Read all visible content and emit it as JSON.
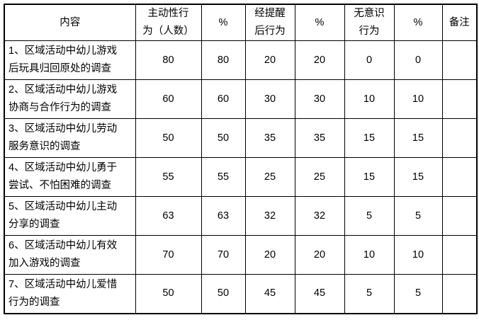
{
  "colors": {
    "border": "#000000",
    "text": "#000000",
    "background": "#ffffff"
  },
  "table": {
    "headers": [
      {
        "lines": [
          "内容"
        ]
      },
      {
        "lines": [
          "主动性行",
          "为（人数）"
        ]
      },
      {
        "lines": [
          "%"
        ]
      },
      {
        "lines": [
          "经提醒",
          "后行为"
        ]
      },
      {
        "lines": [
          "%"
        ]
      },
      {
        "lines": [
          "无意识",
          "行为"
        ]
      },
      {
        "lines": [
          "%"
        ]
      },
      {
        "lines": [
          "备注"
        ]
      }
    ],
    "rows": [
      {
        "content_lines": [
          "1、区域活动中幼儿游戏",
          "后玩具归回原处的调查"
        ],
        "values": [
          "80",
          "80",
          "20",
          "20",
          "0",
          "0"
        ],
        "remark": ""
      },
      {
        "content_lines": [
          "2、区域活动中幼儿游戏",
          "协商与合作行为的调查"
        ],
        "values": [
          "60",
          "60",
          "30",
          "30",
          "10",
          "10"
        ],
        "remark": ""
      },
      {
        "content_lines": [
          "3、区域活动中幼儿劳动",
          "服务意识的调查"
        ],
        "values": [
          "50",
          "50",
          "35",
          "35",
          "15",
          "15"
        ],
        "remark": ""
      },
      {
        "content_lines": [
          "4、区域活动中幼儿勇于",
          "尝试、不怕困难的调查"
        ],
        "values": [
          "55",
          "55",
          "25",
          "25",
          "15",
          "15"
        ],
        "remark": ""
      },
      {
        "content_lines": [
          "5、区域活动中幼儿主动",
          "分享的调查"
        ],
        "values": [
          "63",
          "63",
          "32",
          "32",
          "5",
          "5"
        ],
        "remark": ""
      },
      {
        "content_lines": [
          "6、区域活动中幼儿有效",
          "加入游戏的调查"
        ],
        "values": [
          "70",
          "70",
          "20",
          "20",
          "10",
          "10"
        ],
        "remark": ""
      },
      {
        "content_lines": [
          "7、区域活动中幼儿爱惜",
          "行为的调查"
        ],
        "values": [
          "50",
          "50",
          "45",
          "45",
          "5",
          "5"
        ],
        "remark": ""
      }
    ]
  },
  "chart_data": {
    "type": "table",
    "title": "",
    "columns": [
      "内容",
      "主动性行为（人数）",
      "%",
      "经提醒后行为",
      "%",
      "无意识行为",
      "%",
      "备注"
    ],
    "rows": [
      [
        "1、区域活动中幼儿游戏后玩具归回原处的调查",
        80,
        80,
        20,
        20,
        0,
        0,
        ""
      ],
      [
        "2、区域活动中幼儿游戏协商与合作行为的调查",
        60,
        60,
        30,
        30,
        10,
        10,
        ""
      ],
      [
        "3、区域活动中幼儿劳动服务意识的调查",
        50,
        50,
        35,
        35,
        15,
        15,
        ""
      ],
      [
        "4、区域活动中幼儿勇于尝试、不怕困难的调查",
        55,
        55,
        25,
        25,
        15,
        15,
        ""
      ],
      [
        "5、区域活动中幼儿主动分享的调查",
        63,
        63,
        32,
        32,
        5,
        5,
        ""
      ],
      [
        "6、区域活动中幼儿有效加入游戏的调查",
        70,
        70,
        20,
        20,
        10,
        10,
        ""
      ],
      [
        "7、区域活动中幼儿爱惜行为的调查",
        50,
        50,
        45,
        45,
        5,
        5,
        ""
      ]
    ]
  }
}
